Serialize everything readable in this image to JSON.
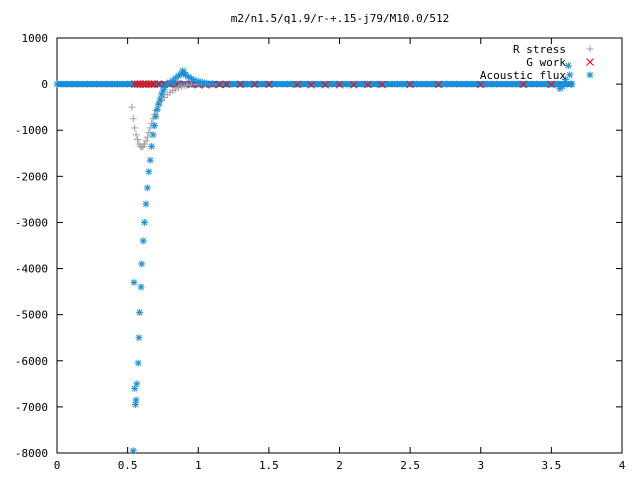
{
  "chart_data": {
    "type": "scatter",
    "title": "m2/n1.5/q1.9/r-+.15-j79/M10.0/512",
    "xlabel": "",
    "ylabel": "",
    "xlim": [
      0,
      4
    ],
    "ylim": [
      -8000,
      1000
    ],
    "x_ticks": [
      0,
      0.5,
      1,
      1.5,
      2,
      2.5,
      3,
      3.5,
      4
    ],
    "x_tick_labels": [
      "0",
      "0.5",
      "1",
      "1.5",
      "2",
      "2.5",
      "3",
      "3.5",
      "4"
    ],
    "y_ticks": [
      1000,
      0,
      -1000,
      -2000,
      -3000,
      -4000,
      -5000,
      -6000,
      -7000,
      -8000
    ],
    "y_tick_labels": [
      "1000",
      "0",
      "-1000",
      "-2000",
      "-3000",
      "-4000",
      "-5000",
      "-6000",
      "-7000",
      "-8000"
    ],
    "grid": false,
    "legend_position": "top-right",
    "series": [
      {
        "name": "R stress",
        "marker": "plus",
        "color": "#a0a0a0",
        "x": [
          0.53,
          0.54,
          0.55,
          0.56,
          0.57,
          0.58,
          0.59,
          0.6,
          0.61,
          0.62,
          0.63,
          0.64,
          0.65,
          0.66,
          0.67,
          0.68,
          0.69,
          0.7,
          0.72,
          0.74,
          0.76,
          0.78,
          0.8,
          0.82,
          0.84,
          0.86,
          0.88,
          0.9,
          0.92,
          0.95,
          1.0,
          1.05,
          1.1
        ],
        "y": [
          -500,
          -750,
          -950,
          -1100,
          -1200,
          -1300,
          -1350,
          -1370,
          -1350,
          -1300,
          -1230,
          -1150,
          -1050,
          -950,
          -850,
          -750,
          -650,
          -570,
          -450,
          -360,
          -290,
          -230,
          -180,
          -140,
          -110,
          -80,
          -60,
          -40,
          -25,
          -10,
          -5,
          0,
          0
        ]
      },
      {
        "name": "G work",
        "marker": "cross",
        "color": "#ff0000",
        "x": [
          0.55,
          0.57,
          0.59,
          0.61,
          0.63,
          0.65,
          0.67,
          0.69,
          0.72,
          0.76,
          0.8,
          0.85,
          0.9,
          0.95,
          1.0,
          1.05,
          1.1,
          1.15,
          1.2,
          1.3,
          1.4,
          1.5,
          1.7,
          1.8,
          1.9,
          2.0,
          2.1,
          2.2,
          2.3,
          2.5,
          2.7,
          3.0,
          3.3,
          3.5
        ],
        "y": [
          0,
          0,
          0,
          0,
          0,
          0,
          0,
          0,
          0,
          0,
          0,
          0,
          0,
          -10,
          -15,
          -15,
          -10,
          -10,
          -5,
          -5,
          -5,
          -5,
          -10,
          -15,
          -15,
          -15,
          -15,
          -10,
          -10,
          -10,
          -10,
          -10,
          -5,
          -5
        ]
      },
      {
        "name": "Acoustic flux",
        "marker": "star",
        "color": "#1a8fd8",
        "x": [
          0.54,
          0.545,
          0.55,
          0.555,
          0.56,
          0.565,
          0.575,
          0.58,
          0.585,
          0.595,
          0.6,
          0.61,
          0.62,
          0.63,
          0.64,
          0.65,
          0.66,
          0.67,
          0.68,
          0.69,
          0.7,
          0.71,
          0.72,
          0.73,
          0.74,
          0.75,
          0.76,
          0.78,
          0.8,
          0.82,
          0.84,
          0.86,
          0.88,
          0.89,
          0.9,
          0.91,
          0.93,
          0.95,
          0.97,
          1.0,
          1.03,
          1.06,
          1.1,
          3.56,
          3.58,
          3.6,
          3.62,
          3.63,
          3.64
        ],
        "y": [
          -7950,
          -4300,
          -6600,
          -6950,
          -6850,
          -6500,
          -6050,
          -5500,
          -4950,
          -4400,
          -3900,
          -3400,
          -3000,
          -2600,
          -2250,
          -1900,
          -1650,
          -1350,
          -1100,
          -900,
          -700,
          -550,
          -430,
          -330,
          -230,
          -150,
          -80,
          -10,
          40,
          80,
          130,
          180,
          220,
          290,
          250,
          200,
          160,
          120,
          90,
          60,
          40,
          20,
          10,
          -100,
          -50,
          100,
          400,
          200,
          0
        ]
      }
    ],
    "baseline_band": {
      "series": "Acoustic flux",
      "x_start": 0.0,
      "x_end": 3.65,
      "y": 0
    }
  }
}
